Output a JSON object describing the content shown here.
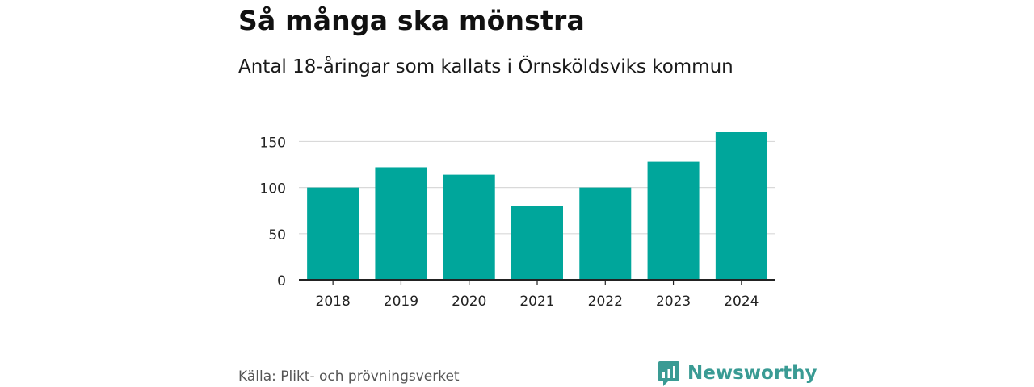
{
  "header": {
    "title": "Så många ska mönstra",
    "subtitle": "Antal 18-åringar som kallats i Örnsköldsviks kommun"
  },
  "chart_data": {
    "type": "bar",
    "title": "Så många ska mönstra",
    "subtitle": "Antal 18-åringar som kallats i Örnsköldsviks kommun",
    "xlabel": "",
    "ylabel": "",
    "categories": [
      "2018",
      "2019",
      "2020",
      "2021",
      "2022",
      "2023",
      "2024"
    ],
    "values": [
      100,
      122,
      114,
      80,
      100,
      128,
      160
    ],
    "yticks": [
      0,
      50,
      100,
      150
    ],
    "ylim": [
      0,
      160
    ],
    "grid": true,
    "legend": "none",
    "bar_color": "#00a69b"
  },
  "footer": {
    "source": "Källa: Plikt- och prövningsverket",
    "brand": "Newsworthy"
  },
  "colors": {
    "bar": "#00a69b",
    "grid": "#d9d9d9",
    "axis": "#222222",
    "brand": "#3a9b94",
    "muted": "#555555"
  }
}
